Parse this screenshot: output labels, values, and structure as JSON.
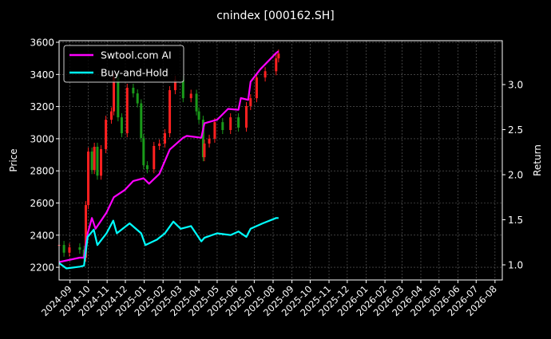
{
  "chart_data": {
    "type": "line",
    "title": "cnindex [000162.SH]",
    "ylabel_left": "Price",
    "ylabel_right": "Return",
    "xlim": [
      "2024-08-14",
      "2026-08-13"
    ],
    "ylim_left": [
      2121,
      3610
    ],
    "ylim_right": [
      0.832,
      3.487
    ],
    "grid": true,
    "legend_position": "top-left",
    "x_ticks": [
      "2024-09",
      "2024-10",
      "2024-11",
      "2024-12",
      "2025-01",
      "2025-02",
      "2025-03",
      "2025-04",
      "2025-05",
      "2025-06",
      "2025-07",
      "2025-08",
      "2025-09",
      "2025-10",
      "2025-11",
      "2025-12",
      "2026-01",
      "2026-02",
      "2026-03",
      "2026-04",
      "2026-05",
      "2026-06",
      "2026-07",
      "2026-08"
    ],
    "y_ticks_left": [
      2200,
      2400,
      2600,
      2800,
      3000,
      3200,
      3400,
      3600
    ],
    "y_ticks_right": [
      "1.0",
      "1.5",
      "2.0",
      "2.5",
      "3.0"
    ],
    "price": {
      "up_color": "#ff2020",
      "down_color": "#1a9a1a",
      "dates": [
        "2024-08-14",
        "2024-08-22",
        "2024-08-31",
        "2024-09-17",
        "2024-09-24",
        "2024-09-27",
        "2024-10-01",
        "2024-10-07",
        "2024-10-11",
        "2024-10-16",
        "2024-10-22",
        "2024-10-30",
        "2024-11-08",
        "2024-11-12",
        "2024-11-19",
        "2024-11-25",
        "2024-12-04",
        "2024-12-14",
        "2024-12-21",
        "2024-12-27",
        "2024-12-31",
        "2025-01-06",
        "2025-01-17",
        "2025-01-26",
        "2025-02-04",
        "2025-02-12",
        "2025-02-21",
        "2025-03-06",
        "2025-03-19",
        "2025-03-28",
        "2025-04-01",
        "2025-04-08",
        "2025-04-10",
        "2025-04-18",
        "2025-04-27",
        "2025-05-10",
        "2025-05-23",
        "2025-06-05",
        "2025-06-18",
        "2025-06-25",
        "2025-07-05",
        "2025-07-19",
        "2025-08-06",
        "2025-08-10"
      ],
      "close": [
        2339,
        2291,
        2324,
        2309,
        2260,
        2587,
        2920,
        2805,
        2950,
        2770,
        2935,
        3118,
        3170,
        3381,
        3133,
        3034,
        3317,
        3282,
        3220,
        3004,
        2835,
        2810,
        2955,
        2970,
        3034,
        3302,
        3367,
        3252,
        3280,
        3170,
        3118,
        2885,
        2970,
        3000,
        3103,
        3054,
        3133,
        3069,
        3203,
        3252,
        3381,
        3420,
        3500,
        3530
      ]
    },
    "series": [
      {
        "name": "Swtool.com AI",
        "color": "#ff00ff",
        "axis": "right",
        "dates": [
          "2024-08-14",
          "2024-09-17",
          "2024-09-24",
          "2024-09-30",
          "2024-10-07",
          "2024-10-13",
          "2024-10-31",
          "2024-11-12",
          "2024-11-30",
          "2024-12-14",
          "2024-12-31",
          "2025-01-09",
          "2025-01-26",
          "2025-02-12",
          "2025-03-06",
          "2025-03-12",
          "2025-04-05",
          "2025-04-10",
          "2025-05-01",
          "2025-05-19",
          "2025-06-05",
          "2025-06-09",
          "2025-06-21",
          "2025-06-25",
          "2025-07-11",
          "2025-08-06",
          "2025-08-10"
        ],
        "values": [
          1.03,
          1.08,
          1.08,
          1.35,
          1.52,
          1.4,
          1.58,
          1.75,
          1.83,
          1.93,
          1.96,
          1.9,
          2.01,
          2.28,
          2.41,
          2.43,
          2.41,
          2.57,
          2.61,
          2.73,
          2.72,
          2.85,
          2.83,
          3.03,
          3.17,
          3.35,
          3.37
        ]
      },
      {
        "name": "Buy-and-Hold",
        "color": "#00ffff",
        "axis": "right",
        "dates": [
          "2024-08-14",
          "2024-08-26",
          "2024-09-17",
          "2024-09-24",
          "2024-09-30",
          "2024-10-10",
          "2024-10-16",
          "2024-10-31",
          "2024-11-11",
          "2024-11-17",
          "2024-12-08",
          "2024-12-27",
          "2025-01-03",
          "2025-01-22",
          "2025-02-04",
          "2025-02-18",
          "2025-03-02",
          "2025-03-19",
          "2025-04-05",
          "2025-04-10",
          "2025-05-01",
          "2025-05-23",
          "2025-06-05",
          "2025-06-18",
          "2025-06-25",
          "2025-07-15",
          "2025-08-06",
          "2025-08-10"
        ],
        "values": [
          1.02,
          0.96,
          0.98,
          0.99,
          1.31,
          1.39,
          1.22,
          1.35,
          1.49,
          1.35,
          1.46,
          1.35,
          1.22,
          1.28,
          1.35,
          1.48,
          1.4,
          1.43,
          1.26,
          1.3,
          1.35,
          1.33,
          1.37,
          1.31,
          1.4,
          1.46,
          1.52,
          1.52
        ]
      }
    ]
  }
}
